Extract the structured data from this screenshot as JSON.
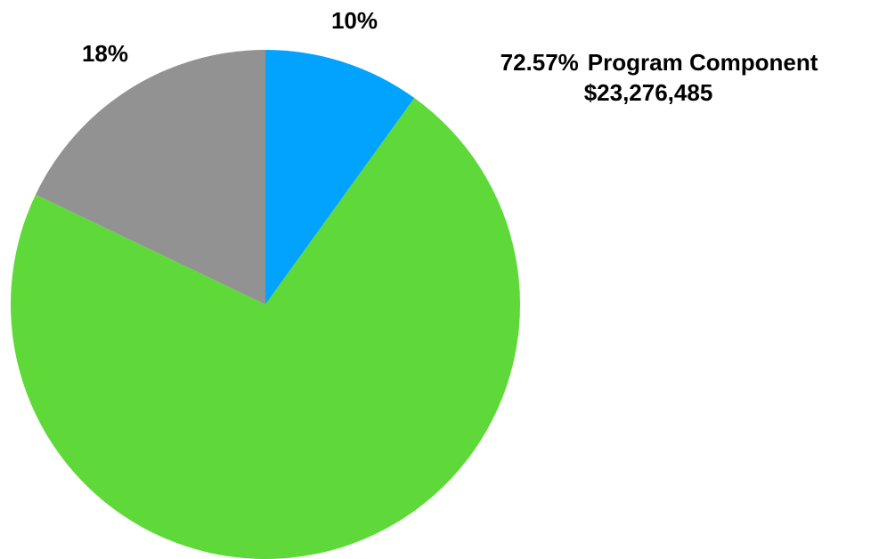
{
  "chart_data": {
    "type": "pie",
    "categories": [
      null,
      "Program Component",
      null
    ],
    "values": [
      10,
      72.57,
      18
    ],
    "value_labels": [
      "10%",
      "72.57%",
      "18%"
    ],
    "amount_label": "$23,276,485",
    "colors": [
      "#02a2ff",
      "#5fd93a",
      "#929292"
    ]
  }
}
